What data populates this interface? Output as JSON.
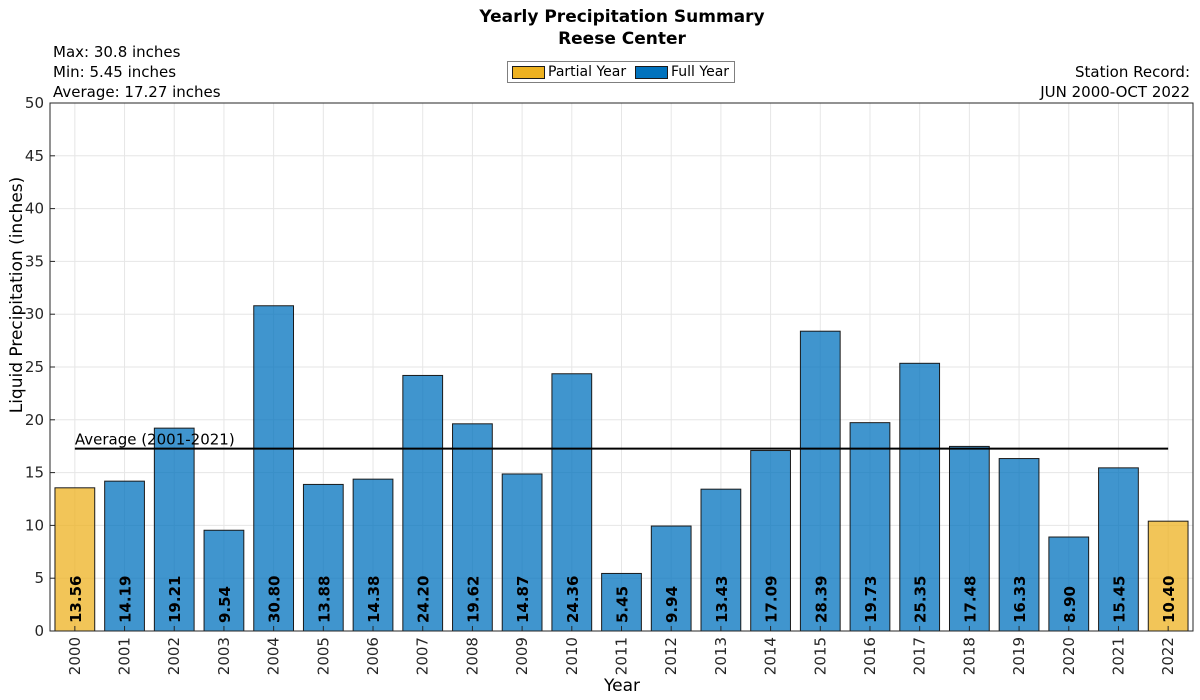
{
  "chart_data": {
    "type": "bar",
    "title": "Yearly Precipitation Summary",
    "subtitle": "Reese Center",
    "xlabel": "Year",
    "ylabel": "Liquid Precipitation (inches)",
    "ylim": [
      0,
      50
    ],
    "yticks": [
      0,
      5,
      10,
      15,
      20,
      25,
      30,
      35,
      40,
      45,
      50
    ],
    "grid": true,
    "stats": {
      "max": "Max: 30.8 inches",
      "min": "Min: 5.45 inches",
      "average": "Average: 17.27 inches"
    },
    "station_record": {
      "line1": "Station Record:",
      "line2": "JUN 2000-OCT 2022"
    },
    "legend": {
      "placement": "top-center",
      "entries": [
        {
          "name": "Partial Year",
          "color": "#edb120"
        },
        {
          "name": "Full Year",
          "color": "#0072bd"
        }
      ]
    },
    "average_line": {
      "label": "Average (2001-2021)",
      "value": 17.27
    },
    "categories": [
      "2000",
      "2001",
      "2002",
      "2003",
      "2004",
      "2005",
      "2006",
      "2007",
      "2008",
      "2009",
      "2010",
      "2011",
      "2012",
      "2013",
      "2014",
      "2015",
      "2016",
      "2017",
      "2018",
      "2019",
      "2020",
      "2021",
      "2022"
    ],
    "values": [
      13.56,
      14.19,
      19.21,
      9.54,
      30.8,
      13.88,
      14.38,
      24.2,
      19.62,
      14.87,
      24.36,
      5.45,
      9.94,
      13.43,
      17.09,
      28.39,
      19.73,
      25.35,
      17.48,
      16.33,
      8.9,
      15.45,
      10.4
    ],
    "value_labels": [
      "13.56",
      "14.19",
      "19.21",
      "9.54",
      "30.80",
      "13.88",
      "14.38",
      "24.20",
      "19.62",
      "14.87",
      "24.36",
      "5.45",
      "9.94",
      "13.43",
      "17.09",
      "28.39",
      "19.73",
      "25.35",
      "17.48",
      "16.33",
      "8.90",
      "15.45",
      "10.40"
    ],
    "year_type": [
      "partial",
      "full",
      "full",
      "full",
      "full",
      "full",
      "full",
      "full",
      "full",
      "full",
      "full",
      "full",
      "full",
      "full",
      "full",
      "full",
      "full",
      "full",
      "full",
      "full",
      "full",
      "full",
      "partial"
    ],
    "colors": {
      "partial": "#edb120",
      "full": "#0072bd"
    }
  }
}
